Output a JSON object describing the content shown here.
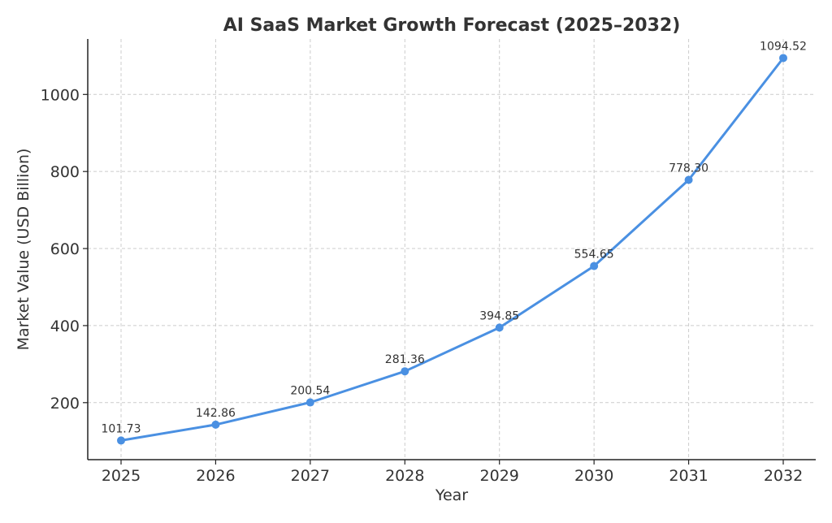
{
  "chart_data": {
    "type": "line",
    "title": "AI SaaS Market Growth Forecast (2025–2032)",
    "xlabel": "Year",
    "ylabel": "Market Value (USD Billion)",
    "categories": [
      "2025",
      "2026",
      "2027",
      "2028",
      "2029",
      "2030",
      "2031",
      "2032"
    ],
    "series": [
      {
        "values": [
          101.73,
          142.86,
          200.54,
          281.36,
          394.85,
          554.65,
          778.3,
          1094.52
        ],
        "color": "#4a90e2"
      }
    ],
    "data_labels": [
      "101.73",
      "142.86",
      "200.54",
      "281.36",
      "394.85",
      "554.65",
      "778.30",
      "1094.52"
    ],
    "y_ticks": [
      200,
      400,
      600,
      800,
      1000
    ],
    "ylim": [
      52,
      1144
    ],
    "grid": true,
    "legend": "none"
  }
}
